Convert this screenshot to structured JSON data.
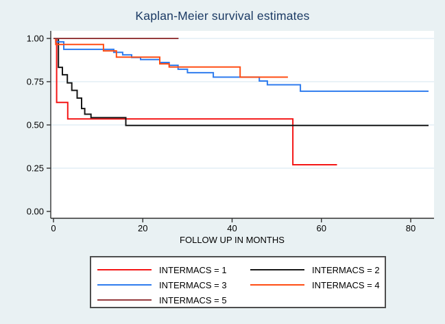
{
  "title": "Kaplan-Meier survival estimates",
  "colors": {
    "background": "#e9f1f3",
    "plot_background": "#ffffff",
    "gridline": "#dceaf2",
    "axis": "#303030",
    "title_text": "#1b3a64",
    "tick_text": "#000000",
    "legend_border": "#4d4d4d"
  },
  "chart_data": {
    "type": "line",
    "subtype": "step-survival",
    "title": "Kaplan-Meier survival estimates",
    "xlabel": "FOLLOW UP IN MONTHS",
    "ylabel": "",
    "xlim": [
      0,
      85.2
    ],
    "ylim": [
      0,
      1
    ],
    "grid": "horizontal",
    "legend_position": "below",
    "xtick_values": [
      0,
      20,
      40,
      60,
      80
    ],
    "xtick_labels": [
      "0",
      "20",
      "40",
      "60",
      "80"
    ],
    "ytick_values": [
      0,
      0.25,
      0.5,
      0.75,
      1
    ],
    "ytick_labels": [
      "0.00",
      "0.25",
      "0.50",
      "0.75",
      "1.00"
    ],
    "series": [
      {
        "name": "INTERMACS = 1",
        "color": "#f41414",
        "end_x": 63.5,
        "points": [
          [
            0,
            1.0
          ],
          [
            0.7,
            0.63
          ],
          [
            3.2,
            0.535
          ],
          [
            53.6,
            0.27
          ]
        ]
      },
      {
        "name": "INTERMACS = 2",
        "color": "#161616",
        "end_x": 84,
        "points": [
          [
            0,
            1.0
          ],
          [
            1.1,
            0.833
          ],
          [
            2.0,
            0.79
          ],
          [
            3.1,
            0.743
          ],
          [
            4.1,
            0.7
          ],
          [
            5.3,
            0.655
          ],
          [
            6.3,
            0.595
          ],
          [
            7.0,
            0.562
          ],
          [
            8.4,
            0.542
          ],
          [
            16.2,
            0.497
          ]
        ]
      },
      {
        "name": "INTERMACS = 3",
        "color": "#2d7bee",
        "end_x": 84,
        "points": [
          [
            0,
            1.0
          ],
          [
            0.5,
            0.98
          ],
          [
            2.3,
            0.937
          ],
          [
            13.5,
            0.92
          ],
          [
            15.5,
            0.905
          ],
          [
            17.5,
            0.89
          ],
          [
            19.5,
            0.878
          ],
          [
            23.8,
            0.861
          ],
          [
            25.9,
            0.845
          ],
          [
            27.9,
            0.822
          ],
          [
            30.0,
            0.802
          ],
          [
            35.8,
            0.776
          ],
          [
            46.1,
            0.754
          ],
          [
            47.9,
            0.732
          ],
          [
            55.3,
            0.695
          ]
        ]
      },
      {
        "name": "INTERMACS = 4",
        "color": "#ff4c12",
        "end_x": 52.5,
        "points": [
          [
            0,
            1.0
          ],
          [
            0.5,
            0.965
          ],
          [
            11.2,
            0.928
          ],
          [
            14.1,
            0.892
          ],
          [
            23.8,
            0.853
          ],
          [
            25.9,
            0.835
          ],
          [
            41.8,
            0.776
          ]
        ]
      },
      {
        "name": "INTERMACS = 5",
        "color": "#953b3d",
        "end_x": 28,
        "points": [
          [
            0,
            1.0
          ]
        ]
      }
    ]
  }
}
